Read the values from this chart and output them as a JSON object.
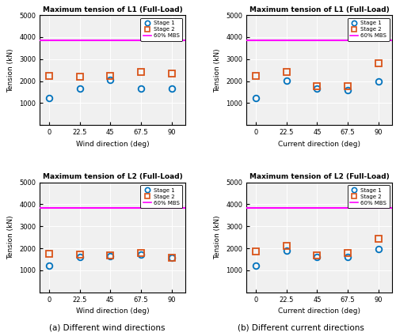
{
  "directions": [
    0,
    22.5,
    45,
    67.5,
    90
  ],
  "wind_L1_stage1": [
    1230,
    1650,
    2050,
    1650,
    1680
  ],
  "wind_L1_stage2": [
    2230,
    2210,
    2220,
    2430,
    2350
  ],
  "wind_L2_stage1": [
    1220,
    1620,
    1640,
    1730,
    1555
  ],
  "wind_L2_stage2": [
    1750,
    1700,
    1680,
    1780,
    1560
  ],
  "current_L1_stage1": [
    1240,
    2020,
    1680,
    1590,
    2000
  ],
  "current_L1_stage2": [
    2230,
    2430,
    1760,
    1780,
    2820
  ],
  "current_L2_stage1": [
    1220,
    1900,
    1600,
    1620,
    1950
  ],
  "current_L2_stage2": [
    1850,
    2100,
    1680,
    1800,
    2430
  ],
  "mbs_line": 3850,
  "ylim": [
    0,
    5000
  ],
  "yticks": [
    0,
    1000,
    2000,
    3000,
    4000,
    5000
  ],
  "stage1_color": "#0072BD",
  "stage2_color": "#D95319",
  "mbs_color": "#FF00FF",
  "plot_bg": "#F0F0F0",
  "title_L1": "Maximum tension of L1 (Full-Load)",
  "title_L2": "Maximum tension of L2 (Full-Load)",
  "xlabel_wind": "Wind direction (deg)",
  "xlabel_current": "Current direction (deg)",
  "ylabel": "Tension (kN)",
  "caption_a": "(a) Different wind directions",
  "caption_b": "(b) Different current directions"
}
